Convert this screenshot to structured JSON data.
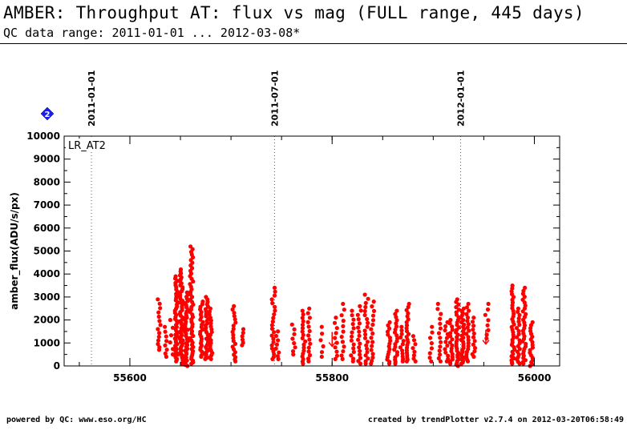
{
  "header": {
    "title": "AMBER: Throughput AT: flux vs mag (FULL range, 445 days)",
    "subtitle": "QC data range: 2011-01-01 ... 2012-03-08*"
  },
  "footer": {
    "left": "powered by QC: www.eso.org/HC",
    "right": "created by trendPlotter v2.7.4 on 2012-03-20T06:58:49"
  },
  "badge_label": "2",
  "colors": {
    "points": "#ff0000",
    "badge": "#1a1aff",
    "axis": "#000000"
  },
  "chart_data": {
    "type": "scatter",
    "panel_label": "LR_AT2",
    "ylabel": "amber_flux(ADU/s/px)",
    "xlabel": "",
    "xlim": [
      55535,
      56025
    ],
    "ylim": [
      0,
      10000
    ],
    "x_ticks": [
      55600,
      55800,
      56000
    ],
    "x_tick_labels": [
      "55600",
      "55800",
      "56000"
    ],
    "y_ticks": [
      0,
      1000,
      2000,
      3000,
      4000,
      5000,
      6000,
      7000,
      8000,
      9000,
      10000
    ],
    "y_tick_labels": [
      "0",
      "1000",
      "2000",
      "3000",
      "4000",
      "5000",
      "6000",
      "7000",
      "8000",
      "9000",
      "10000"
    ],
    "date_markers": [
      {
        "label": "2011-01-01",
        "x": 55562
      },
      {
        "label": "2011-07-01",
        "x": 55743
      },
      {
        "label": "2012-01-01",
        "x": 55927
      }
    ],
    "series": [
      {
        "color": "#ff0000",
        "clusters": [
          {
            "x": 55629,
            "y_min": 700,
            "y_max": 2900,
            "n": 14
          },
          {
            "x": 55636,
            "y_min": 400,
            "y_max": 1700,
            "n": 8
          },
          {
            "x": 55641,
            "y_min": 500,
            "y_max": 2000,
            "n": 6
          },
          {
            "x": 55646,
            "y_min": 200,
            "y_max": 3900,
            "n": 45
          },
          {
            "x": 55651,
            "y_min": 100,
            "y_max": 4200,
            "n": 55
          },
          {
            "x": 55656,
            "y_min": 0,
            "y_max": 3200,
            "n": 40
          },
          {
            "x": 55661,
            "y_min": 100,
            "y_max": 5200,
            "n": 50
          },
          {
            "x": 55671,
            "y_min": 400,
            "y_max": 2800,
            "n": 25
          },
          {
            "x": 55676,
            "y_min": 300,
            "y_max": 3000,
            "n": 30
          },
          {
            "x": 55680,
            "y_min": 300,
            "y_max": 2500,
            "n": 20
          },
          {
            "x": 55703,
            "y_min": 200,
            "y_max": 2600,
            "n": 20
          },
          {
            "x": 55712,
            "y_min": 900,
            "y_max": 1600,
            "n": 6
          },
          {
            "x": 55742,
            "y_min": 300,
            "y_max": 3400,
            "n": 22
          },
          {
            "x": 55746,
            "y_min": 300,
            "y_max": 1500,
            "n": 8
          },
          {
            "x": 55762,
            "y_min": 500,
            "y_max": 1800,
            "n": 8
          },
          {
            "x": 55772,
            "y_min": 100,
            "y_max": 2400,
            "n": 18
          },
          {
            "x": 55777,
            "y_min": 200,
            "y_max": 2500,
            "n": 14
          },
          {
            "x": 55790,
            "y_min": 400,
            "y_max": 1700,
            "n": 6
          },
          {
            "x": 55804,
            "y_min": 300,
            "y_max": 2100,
            "n": 10
          },
          {
            "x": 55811,
            "y_min": 300,
            "y_max": 2700,
            "n": 12
          },
          {
            "x": 55820,
            "y_min": 200,
            "y_max": 2400,
            "n": 14
          },
          {
            "x": 55827,
            "y_min": 100,
            "y_max": 2600,
            "n": 16
          },
          {
            "x": 55834,
            "y_min": 100,
            "y_max": 3100,
            "n": 20
          },
          {
            "x": 55840,
            "y_min": 100,
            "y_max": 2800,
            "n": 16
          },
          {
            "x": 55856,
            "y_min": 100,
            "y_max": 1900,
            "n": 16
          },
          {
            "x": 55863,
            "y_min": 100,
            "y_max": 2400,
            "n": 20
          },
          {
            "x": 55869,
            "y_min": 200,
            "y_max": 1700,
            "n": 12
          },
          {
            "x": 55875,
            "y_min": 200,
            "y_max": 2700,
            "n": 22
          },
          {
            "x": 55881,
            "y_min": 200,
            "y_max": 1300,
            "n": 8
          },
          {
            "x": 55898,
            "y_min": 200,
            "y_max": 1700,
            "n": 8
          },
          {
            "x": 55906,
            "y_min": 200,
            "y_max": 2700,
            "n": 14
          },
          {
            "x": 55913,
            "y_min": 200,
            "y_max": 1900,
            "n": 12
          },
          {
            "x": 55918,
            "y_min": 100,
            "y_max": 2000,
            "n": 16
          },
          {
            "x": 55924,
            "y_min": 0,
            "y_max": 2900,
            "n": 30
          },
          {
            "x": 55929,
            "y_min": 100,
            "y_max": 2500,
            "n": 28
          },
          {
            "x": 55934,
            "y_min": 200,
            "y_max": 2700,
            "n": 20
          },
          {
            "x": 55940,
            "y_min": 400,
            "y_max": 2100,
            "n": 12
          },
          {
            "x": 55953,
            "y_min": 1200,
            "y_max": 2700,
            "n": 8
          },
          {
            "x": 55979,
            "y_min": 100,
            "y_max": 3500,
            "n": 32
          },
          {
            "x": 55984,
            "y_min": 100,
            "y_max": 2500,
            "n": 20
          },
          {
            "x": 55990,
            "y_min": 100,
            "y_max": 3400,
            "n": 30
          },
          {
            "x": 55997,
            "y_min": 0,
            "y_max": 1900,
            "n": 18
          }
        ],
        "upper_limits": [
          {
            "x": 55800,
            "y": 1200
          },
          {
            "x": 55952,
            "y": 1300
          }
        ]
      }
    ]
  }
}
